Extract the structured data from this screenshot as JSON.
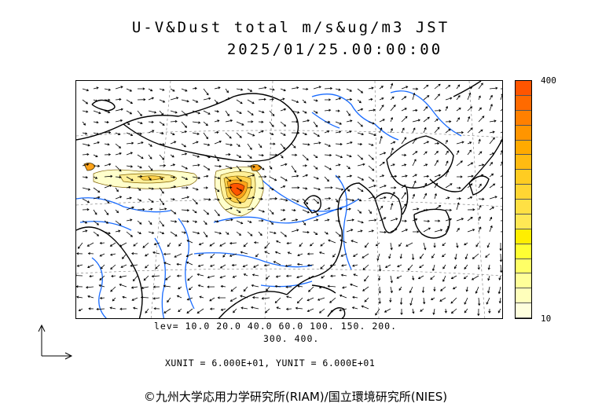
{
  "title_line1": "U-V&Dust total m/s&ug/m3 JST",
  "title_line2": "2025/01/25.00:00:00",
  "colorbar": {
    "max_label": "400",
    "min_label": "10",
    "colors": [
      "#ff5500",
      "#ff6a00",
      "#ff8000",
      "#ff9500",
      "#ffaa00",
      "#ffbb11",
      "#ffcc22",
      "#ffd633",
      "#ffe044",
      "#ffe855",
      "#ffee00",
      "#ffff33",
      "#ffff66",
      "#ffff99",
      "#ffffbb",
      "#ffffdd"
    ]
  },
  "contour_levels_line1": "lev= 10.0 20.0 40.0 60.0 100. 150. 200.",
  "contour_levels_line2": "300. 400.",
  "units_text": "XUNIT = 6.000E+01, YUNIT = 6.000E+01",
  "copyright": "©九州大学応用力学研究所(RIAM)/国立環境研究所(NIES)",
  "map": {
    "coastline_color": "#000000",
    "river_color": "#1a6cff",
    "dust_colors": [
      "#ffffcc",
      "#fff099",
      "#ffd24d",
      "#ffa31a",
      "#ff5500"
    ]
  }
}
